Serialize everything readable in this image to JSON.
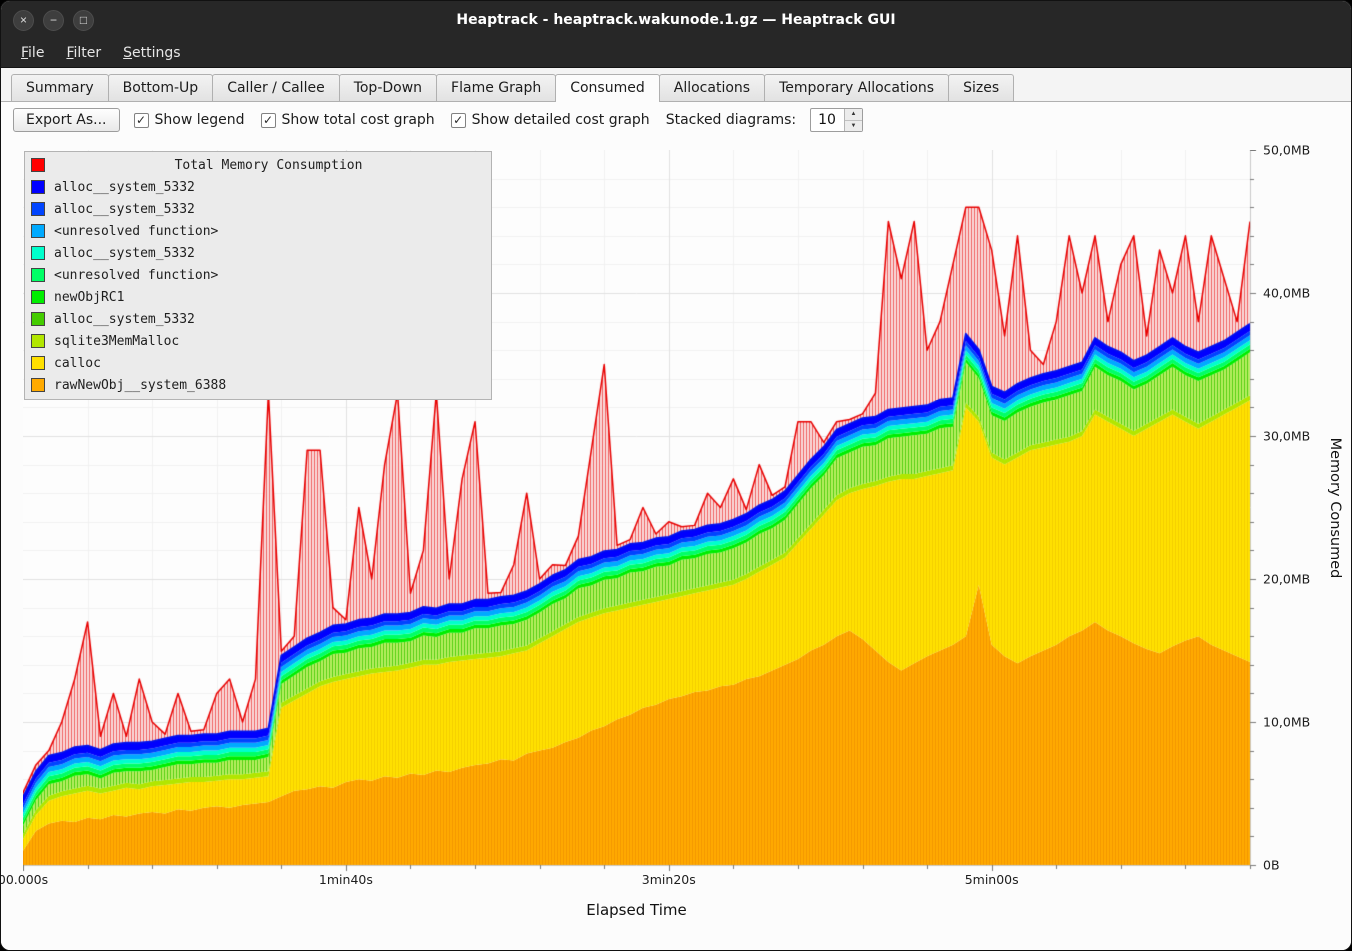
{
  "window": {
    "title": "Heaptrack - heaptrack.wakunode.1.gz — Heaptrack GUI",
    "controls": [
      {
        "name": "close",
        "glyph": "×"
      },
      {
        "name": "minimize",
        "glyph": "−"
      },
      {
        "name": "maximize",
        "glyph": "□"
      }
    ]
  },
  "menubar": {
    "items": [
      "File",
      "Filter",
      "Settings"
    ]
  },
  "tabs": {
    "active": "Consumed",
    "items": [
      "Summary",
      "Bottom-Up",
      "Caller / Callee",
      "Top-Down",
      "Flame Graph",
      "Consumed",
      "Allocations",
      "Temporary Allocations",
      "Sizes"
    ]
  },
  "toolbar": {
    "export_button": "Export As...",
    "checkboxes": [
      {
        "label": "Show legend",
        "checked": true
      },
      {
        "label": "Show total cost graph",
        "checked": true
      },
      {
        "label": "Show detailed cost graph",
        "checked": true
      }
    ],
    "stacked_label": "Stacked diagrams:",
    "stacked_value": "10",
    "spin_up": "▲",
    "spin_down": "▼",
    "check_glyph": "✓"
  },
  "legend": {
    "title": "Total Memory Consumption",
    "title_color": "#ff0000",
    "items": [
      {
        "label": "alloc__system_5332",
        "color": "#0000ff"
      },
      {
        "label": "alloc__system_5332",
        "color": "#0044ff"
      },
      {
        "label": "<unresolved function>",
        "color": "#00aaff"
      },
      {
        "label": "alloc__system_5332",
        "color": "#00ffcc"
      },
      {
        "label": "<unresolved function>",
        "color": "#00ff66"
      },
      {
        "label": "newObjRC1",
        "color": "#00ee00"
      },
      {
        "label": "alloc__system_5332",
        "color": "#44cc00"
      },
      {
        "label": "sqlite3MemMalloc",
        "color": "#b2e600"
      },
      {
        "label": "calloc",
        "color": "#ffe000"
      },
      {
        "label": "rawNewObj__system_6388",
        "color": "#ffaa00"
      }
    ]
  },
  "axes": {
    "x_label": "Elapsed Time",
    "y_label": "Memory Consumed"
  },
  "chart_data": {
    "type": "area",
    "stacked": true,
    "title": "Total Memory Consumption",
    "xlabel": "Elapsed Time",
    "ylabel": "Memory Consumed",
    "value_unit": "MB",
    "x_unit": "seconds",
    "x_start": 0,
    "x_step": 4,
    "xlim": [
      0,
      380
    ],
    "ylim": [
      0,
      50
    ],
    "minor_x_step": 20,
    "minor_y_step": 2,
    "x_ticks": [
      {
        "v": 0,
        "label": "00.000s"
      },
      {
        "v": 100,
        "label": "1min40s"
      },
      {
        "v": 200,
        "label": "3min20s"
      },
      {
        "v": 300,
        "label": "5min00s"
      }
    ],
    "y_ticks": [
      {
        "v": 0,
        "label": "0B"
      },
      {
        "v": 10,
        "label": "10,0MB"
      },
      {
        "v": 20,
        "label": "20,0MB"
      },
      {
        "v": 30,
        "label": "30,0MB"
      },
      {
        "v": 40,
        "label": "40,0MB"
      },
      {
        "v": 50,
        "label": "50,0MB"
      }
    ],
    "series": [
      {
        "name": "rawNewObj__system_6388",
        "color": "#ffab00",
        "hatch_line": "#f49600",
        "values": [
          1.0,
          2.4,
          2.9,
          3.1,
          3.0,
          3.3,
          3.2,
          3.5,
          3.4,
          3.6,
          3.7,
          3.6,
          3.9,
          3.8,
          4.0,
          4.1,
          4.0,
          4.2,
          4.3,
          4.4,
          4.8,
          5.2,
          5.3,
          5.5,
          5.4,
          5.8,
          6.0,
          5.9,
          6.2,
          6.1,
          6.4,
          6.3,
          6.6,
          6.5,
          6.8,
          7.0,
          7.1,
          7.4,
          7.3,
          7.8,
          8.0,
          8.2,
          8.6,
          8.9,
          9.4,
          9.7,
          10.2,
          10.5,
          11.0,
          11.2,
          11.6,
          11.8,
          12.1,
          12.2,
          12.5,
          12.6,
          13.0,
          13.2,
          13.6,
          14.0,
          14.4,
          15.0,
          15.4,
          16.0,
          16.4,
          15.8,
          15.0,
          14.2,
          13.6,
          14.1,
          14.6,
          15.0,
          15.4,
          16.0,
          19.6,
          15.4,
          14.6,
          14.1,
          14.6,
          15.0,
          15.4,
          16.0,
          16.4,
          17.0,
          16.4,
          16.0,
          15.5,
          15.1,
          14.8,
          15.3,
          15.7,
          16.0,
          15.4,
          15.0,
          14.6,
          14.2
        ]
      },
      {
        "name": "calloc",
        "color": "#ffe200",
        "hatch_line": "#f3cd00",
        "values": [
          0.8,
          1.1,
          1.6,
          1.7,
          2.0,
          1.9,
          1.8,
          1.7,
          2.0,
          1.7,
          1.8,
          2.0,
          1.8,
          2.0,
          1.8,
          1.8,
          2.0,
          1.8,
          1.8,
          1.8,
          6.2,
          6.3,
          6.7,
          7.0,
          7.4,
          7.2,
          7.2,
          7.5,
          7.3,
          7.5,
          7.4,
          7.7,
          7.4,
          7.7,
          7.5,
          7.4,
          7.4,
          7.2,
          7.5,
          7.2,
          7.5,
          7.8,
          7.9,
          8.1,
          7.9,
          7.9,
          7.6,
          7.5,
          7.2,
          7.2,
          7.0,
          7.0,
          6.9,
          7.0,
          6.9,
          7.0,
          7.0,
          7.3,
          7.4,
          7.5,
          8.1,
          8.5,
          9.1,
          9.5,
          9.6,
          10.5,
          11.5,
          12.6,
          13.4,
          12.9,
          12.6,
          12.4,
          12.2,
          16.0,
          11.4,
          13.1,
          13.4,
          14.4,
          14.4,
          14.2,
          14.0,
          13.6,
          13.6,
          14.5,
          14.6,
          14.5,
          14.5,
          15.4,
          16.2,
          16.2,
          15.3,
          14.5,
          15.6,
          16.5,
          17.4,
          18.3
        ]
      },
      {
        "name": "sqlite3MemMalloc",
        "color": "#b2e600",
        "values": 0.35
      },
      {
        "name": "alloc__system_5332",
        "color": "#b9ef63",
        "hatch_line": "#52ce10",
        "values": [
          0.6,
          0.7,
          0.8,
          0.7,
          0.9,
          0.8,
          0.7,
          0.9,
          0.8,
          0.9,
          0.8,
          0.9,
          1.0,
          0.9,
          1.0,
          0.9,
          1.0,
          1.0,
          0.9,
          1.0,
          1.3,
          1.4,
          1.5,
          1.4,
          1.6,
          1.5,
          1.6,
          1.5,
          1.7,
          1.6,
          1.5,
          1.7,
          1.6,
          1.7,
          1.6,
          1.8,
          1.7,
          1.8,
          1.7,
          1.8,
          1.8,
          1.9,
          1.8,
          2.0,
          1.9,
          2.0,
          1.9,
          2.1,
          2.0,
          2.1,
          2.0,
          2.2,
          2.1,
          2.2,
          2.1,
          2.2,
          2.2,
          2.3,
          2.2,
          2.3,
          2.4,
          2.5,
          2.4,
          2.6,
          2.5,
          2.6,
          2.5,
          2.7,
          2.6,
          2.7,
          2.6,
          2.8,
          2.7,
          2.8,
          2.7,
          2.6,
          2.7,
          2.8,
          2.7,
          2.8,
          2.8,
          2.9,
          2.8,
          3.0,
          2.9,
          3.0,
          2.9,
          2.8,
          2.9,
          3.0,
          2.9,
          3.0,
          2.9,
          2.8,
          2.9,
          3.0
        ]
      },
      {
        "name": "newObjRC1",
        "color": "#00ee00",
        "values": 0.25
      },
      {
        "name": "<unresolved function>",
        "color": "#00ff66",
        "values": 0.3
      },
      {
        "name": "alloc__system_5332",
        "color": "#00ffcc",
        "values": 0.3
      },
      {
        "name": "<unresolved function>",
        "color": "#00aaff",
        "values": 0.35
      },
      {
        "name": "alloc__system_5332",
        "color": "#0044ff",
        "values": 0.3
      },
      {
        "name": "alloc__system_5332",
        "color": "#0000ff",
        "values": 0.5
      }
    ],
    "total": {
      "name": "Total Memory Consumption",
      "color": "#e80000",
      "hatch_base": "#fadcdc",
      "hatch_line": "#f06060",
      "values": [
        5,
        7,
        8,
        10,
        13,
        17,
        9,
        12,
        9,
        13,
        10,
        8.5,
        12,
        9,
        8,
        12,
        13,
        10,
        13,
        33,
        14,
        16,
        29,
        29,
        18,
        17,
        25,
        20,
        28,
        33,
        19,
        22,
        33,
        20,
        27,
        31,
        19,
        18,
        21,
        26,
        20,
        21,
        19,
        23,
        29,
        35,
        22,
        21,
        25,
        22,
        24,
        23,
        22,
        26,
        25,
        27,
        24,
        28,
        24,
        25,
        31,
        31,
        29,
        31,
        30,
        31,
        33,
        45,
        41,
        45,
        36,
        38,
        42,
        46,
        46,
        43,
        37,
        44,
        36,
        35,
        38,
        44,
        40,
        44,
        38,
        42,
        44,
        37,
        43,
        40,
        44,
        38,
        44,
        41,
        38,
        45
      ]
    }
  }
}
